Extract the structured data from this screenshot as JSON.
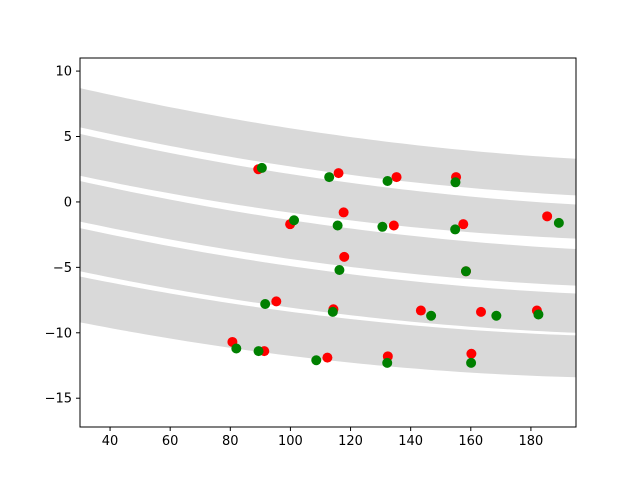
{
  "chart_data": {
    "type": "scatter",
    "xlim": [
      30,
      195
    ],
    "ylim": [
      -17.2,
      11.0
    ],
    "grid": false,
    "legend": "none",
    "x_ticks": [
      40,
      60,
      80,
      100,
      120,
      140,
      160,
      180
    ],
    "y_ticks": [
      10,
      5,
      0,
      -5,
      -10,
      -15
    ],
    "x_tick_labels": [
      "40",
      "60",
      "80",
      "100",
      "120",
      "140",
      "160",
      "180"
    ],
    "y_tick_labels": [
      "10",
      "5",
      "0",
      "−5",
      "−10",
      "−15"
    ],
    "band_color": "#d9d9d9",
    "bands": [
      {
        "x": [
          30,
          195
        ],
        "upper": [
          8.7,
          3.3
        ],
        "lower": [
          5.7,
          0.5
        ]
      },
      {
        "x": [
          30,
          195
        ],
        "upper": [
          5.2,
          -0.2
        ],
        "lower": [
          2.0,
          -2.8
        ]
      },
      {
        "x": [
          30,
          195
        ],
        "upper": [
          1.6,
          -3.6
        ],
        "lower": [
          -1.5,
          -6.4
        ]
      },
      {
        "x": [
          30,
          195
        ],
        "upper": [
          -2.0,
          -7.0
        ],
        "lower": [
          -5.3,
          -10.0
        ]
      },
      {
        "x": [
          30,
          195
        ],
        "upper": [
          -5.7,
          -10.2
        ],
        "lower": [
          -9.2,
          -13.4
        ]
      }
    ],
    "series": [
      {
        "color": "#ff0000",
        "points": [
          [
            89.3,
            2.5
          ],
          [
            116.0,
            2.2
          ],
          [
            135.3,
            1.9
          ],
          [
            155.1,
            1.9
          ],
          [
            99.9,
            -1.7
          ],
          [
            117.7,
            -0.8
          ],
          [
            134.4,
            -1.8
          ],
          [
            157.5,
            -1.7
          ],
          [
            185.4,
            -1.1
          ],
          [
            117.9,
            -4.2
          ],
          [
            158.4,
            -5.3
          ],
          [
            95.3,
            -7.6
          ],
          [
            114.3,
            -8.2
          ],
          [
            143.4,
            -8.3
          ],
          [
            163.4,
            -8.4
          ],
          [
            182.0,
            -8.3
          ],
          [
            80.7,
            -10.7
          ],
          [
            91.3,
            -11.4
          ],
          [
            112.3,
            -11.9
          ],
          [
            132.4,
            -11.8
          ],
          [
            160.2,
            -11.6
          ]
        ]
      },
      {
        "color": "#008000",
        "points": [
          [
            90.5,
            2.6
          ],
          [
            112.9,
            1.9
          ],
          [
            132.3,
            1.6
          ],
          [
            154.9,
            1.5
          ],
          [
            101.2,
            -1.4
          ],
          [
            115.7,
            -1.8
          ],
          [
            130.6,
            -1.9
          ],
          [
            154.8,
            -2.1
          ],
          [
            189.3,
            -1.6
          ],
          [
            116.3,
            -5.2
          ],
          [
            158.4,
            -5.3
          ],
          [
            91.6,
            -7.8
          ],
          [
            114.1,
            -8.4
          ],
          [
            146.8,
            -8.7
          ],
          [
            168.5,
            -8.7
          ],
          [
            182.5,
            -8.6
          ],
          [
            82.0,
            -11.2
          ],
          [
            89.4,
            -11.4
          ],
          [
            108.6,
            -12.1
          ],
          [
            132.2,
            -12.3
          ],
          [
            160.1,
            -12.3
          ]
        ]
      }
    ]
  }
}
